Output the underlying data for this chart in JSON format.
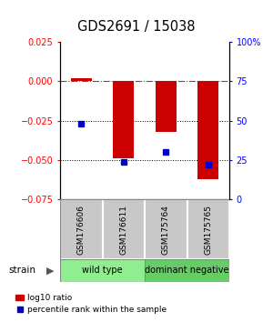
{
  "title": "GDS2691 / 15038",
  "samples": [
    "GSM176606",
    "GSM176611",
    "GSM175764",
    "GSM175765"
  ],
  "log10_ratio": [
    0.002,
    -0.049,
    -0.032,
    -0.062
  ],
  "percentile_rank": [
    48,
    24,
    30,
    22
  ],
  "groups": [
    {
      "label": "wild type",
      "samples": [
        0,
        1
      ],
      "color": "#90EE90"
    },
    {
      "label": "dominant negative",
      "samples": [
        2,
        3
      ],
      "color": "#66CC66"
    }
  ],
  "strain_label": "strain",
  "ylim_left": [
    -0.075,
    0.025
  ],
  "ylim_right": [
    0,
    100
  ],
  "yticks_left": [
    -0.075,
    -0.05,
    -0.025,
    0,
    0.025
  ],
  "yticks_right": [
    0,
    25,
    50,
    75,
    100
  ],
  "ytick_labels_right": [
    "0",
    "25",
    "50",
    "75",
    "100%"
  ],
  "bar_color": "#CC0000",
  "dot_color": "#0000CC",
  "hline0_color": "#555555",
  "hline_dotted_color": "#000000",
  "legend_bar_label": "log10 ratio",
  "legend_dot_label": "percentile rank within the sample",
  "sample_box_color": "#C8C8C8",
  "bar_width": 0.5
}
